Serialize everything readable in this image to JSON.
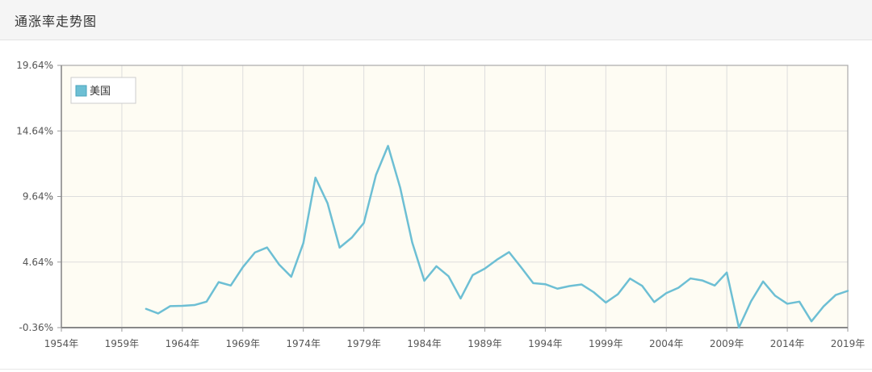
{
  "header": {
    "title": "通涨率走势图"
  },
  "chart_data": {
    "type": "line",
    "title": "",
    "xlabel": "",
    "ylabel": "",
    "x_ticks": [
      "1954年",
      "1959年",
      "1964年",
      "1969年",
      "1974年",
      "1979年",
      "1984年",
      "1989年",
      "1994年",
      "1999年",
      "2004年",
      "2009年",
      "2014年",
      "2019年"
    ],
    "y_ticks": [
      "-0.36%",
      "4.64%",
      "9.64%",
      "14.64%",
      "19.64%"
    ],
    "xlim": [
      1954,
      2019
    ],
    "ylim": [
      -0.36,
      19.64
    ],
    "legend": {
      "position": "top-left",
      "entries": [
        "美国"
      ]
    },
    "grid": true,
    "colors": {
      "series": "#6dbfd4",
      "plot_bg": "#fefcf3",
      "grid": "#dddddd",
      "axis": "#999999"
    },
    "x": [
      1961,
      1962,
      1963,
      1964,
      1965,
      1966,
      1967,
      1968,
      1969,
      1970,
      1971,
      1972,
      1973,
      1974,
      1975,
      1976,
      1977,
      1978,
      1979,
      1980,
      1981,
      1982,
      1983,
      1984,
      1985,
      1986,
      1987,
      1988,
      1989,
      1990,
      1991,
      1992,
      1993,
      1994,
      1995,
      1996,
      1997,
      1998,
      1999,
      2000,
      2001,
      2002,
      2003,
      2004,
      2005,
      2006,
      2007,
      2008,
      2009,
      2010,
      2011,
      2012,
      2013,
      2014,
      2015,
      2016,
      2017,
      2018,
      2019
    ],
    "series": [
      {
        "name": "美国",
        "values": [
          1.07,
          0.72,
          1.28,
          1.3,
          1.36,
          1.62,
          3.11,
          2.85,
          4.25,
          5.37,
          5.75,
          4.45,
          3.52,
          6.08,
          11.08,
          9.13,
          5.74,
          6.5,
          7.62,
          11.27,
          13.5,
          10.33,
          6.13,
          3.21,
          4.32,
          3.56,
          1.86,
          3.65,
          4.14,
          4.82,
          5.4,
          4.24,
          3.03,
          2.95,
          2.61,
          2.81,
          2.93,
          2.34,
          1.55,
          2.19,
          3.38,
          2.83,
          1.59,
          2.27,
          2.68,
          3.39,
          3.23,
          2.85,
          3.84,
          -0.36,
          1.64,
          3.16,
          2.07,
          1.46,
          1.62,
          0.12,
          1.26,
          2.13,
          2.44
        ]
      }
    ]
  }
}
